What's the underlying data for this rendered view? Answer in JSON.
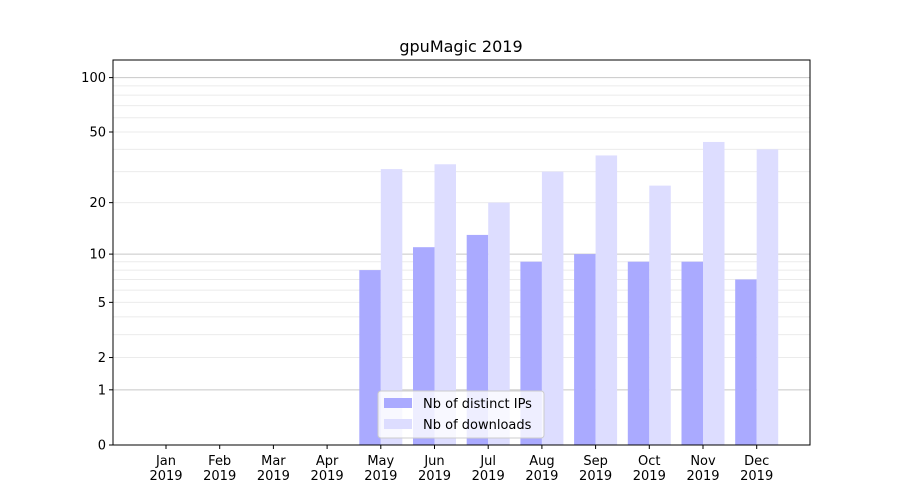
{
  "chart_data": {
    "type": "bar",
    "title": "gpuMagic 2019",
    "xlabel": "",
    "ylabel": "",
    "yscale": "log10(1+y)",
    "ylim": [
      0,
      125
    ],
    "yticks": [
      0,
      1,
      2,
      5,
      10,
      20,
      50,
      100
    ],
    "grid": true,
    "legend_position": "lower-center",
    "categories": [
      "Jan\n2019",
      "Feb\n2019",
      "Mar\n2019",
      "Apr\n2019",
      "May\n2019",
      "Jun\n2019",
      "Jul\n2019",
      "Aug\n2019",
      "Sep\n2019",
      "Oct\n2019",
      "Nov\n2019",
      "Dec\n2019"
    ],
    "series": [
      {
        "name": "Nb of distinct IPs",
        "color": "#aaaaff",
        "values": [
          0,
          0,
          0,
          0,
          8,
          11,
          13,
          9,
          10,
          9,
          9,
          7
        ]
      },
      {
        "name": "Nb of downloads",
        "color": "#ddddff",
        "values": [
          0,
          0,
          0,
          0,
          31,
          33,
          20,
          30,
          37,
          25,
          44,
          40
        ]
      }
    ]
  }
}
